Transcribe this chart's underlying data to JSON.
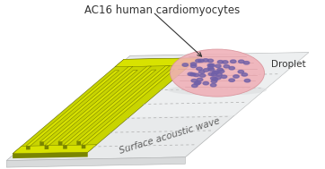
{
  "title": "AC16 human cardiomyocytes",
  "label_droplet": "Droplet",
  "label_wave": "Surface acoustic wave",
  "title_fontsize": 8.5,
  "label_fontsize": 7.5,
  "platform_top": "#e8eaeb",
  "platform_top2": "#d8dadb",
  "platform_edge": "#b0b2b3",
  "idt_top": "#c8d400",
  "idt_side_dark": "#7a8500",
  "idt_top_light": "#d8e200",
  "cell_color": "#7060a8",
  "droplet_fill": "#f0b0b8",
  "droplet_edge": "#d89098",
  "wave_color": "#a8a8a8",
  "arrow_color": "#333333",
  "text_color": "#333333",
  "wave_label_color": "#606060"
}
